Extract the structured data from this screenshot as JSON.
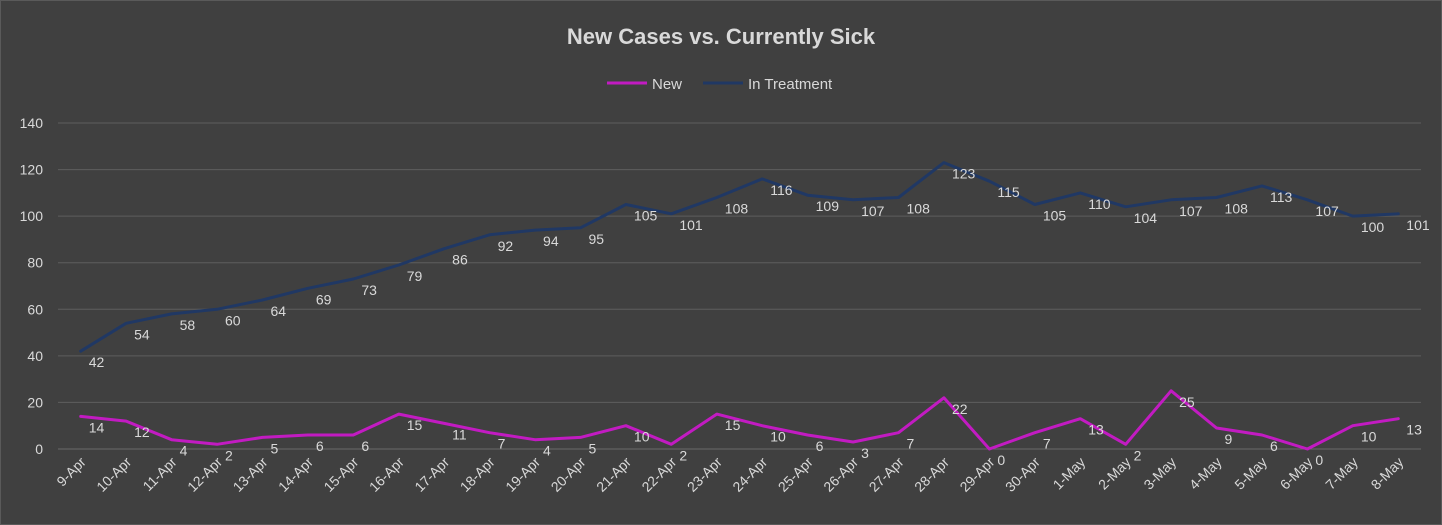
{
  "chart_data": {
    "type": "line",
    "title": "New Cases vs. Currently Sick",
    "xlabel": "",
    "ylabel": "",
    "ylim": [
      0,
      140
    ],
    "yticks": [
      0,
      20,
      40,
      60,
      80,
      100,
      120,
      140
    ],
    "grid": true,
    "legend": "top-center",
    "categories": [
      "9-Apr",
      "10-Apr",
      "11-Apr",
      "12-Apr",
      "13-Apr",
      "14-Apr",
      "15-Apr",
      "16-Apr",
      "17-Apr",
      "18-Apr",
      "19-Apr",
      "20-Apr",
      "21-Apr",
      "22-Apr",
      "23-Apr",
      "24-Apr",
      "25-Apr",
      "26-Apr",
      "27-Apr",
      "28-Apr",
      "29-Apr",
      "30-Apr",
      "1-May",
      "2-May",
      "3-May",
      "4-May",
      "5-May",
      "6-May",
      "7-May",
      "8-May"
    ],
    "series": [
      {
        "name": "New",
        "color": "#c21bc2",
        "values": [
          14,
          12,
          4,
          2,
          5,
          6,
          6,
          15,
          11,
          7,
          4,
          5,
          10,
          2,
          15,
          10,
          6,
          3,
          7,
          22,
          0,
          7,
          13,
          2,
          25,
          9,
          6,
          0,
          10,
          13
        ]
      },
      {
        "name": "In Treatment",
        "color": "#203864",
        "values": [
          42,
          54,
          58,
          60,
          64,
          69,
          73,
          79,
          86,
          92,
          94,
          95,
          105,
          101,
          108,
          116,
          109,
          107,
          108,
          123,
          115,
          105,
          110,
          104,
          107,
          108,
          113,
          107,
          100,
          101
        ]
      }
    ]
  }
}
